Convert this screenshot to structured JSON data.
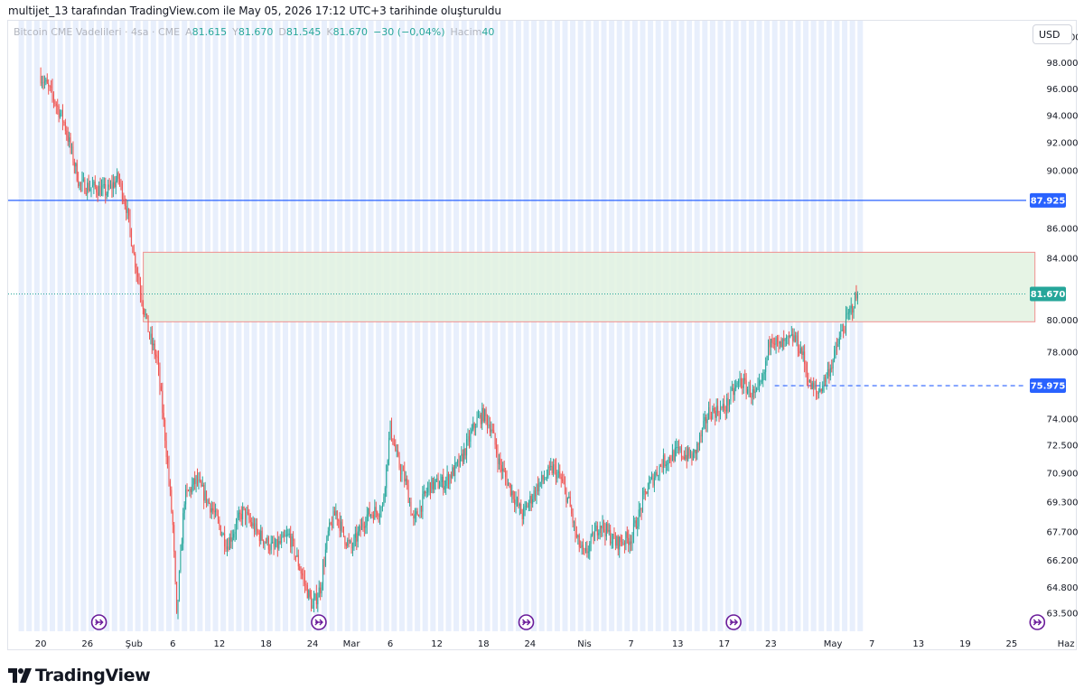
{
  "attribution": "multijet_13 tarafından TradingView.com ile May 05, 2026 17:12 UTC+3 tarihinde oluşturuldu",
  "legend": {
    "symbol": "Bitcoin CME Vadelileri · 4sa · CME",
    "open_label": "A",
    "open": "81.615",
    "high_label": "Y",
    "high": "81.670",
    "low_label": "D",
    "low": "81.545",
    "close_label": "K",
    "close": "81.670",
    "change": "−30 (−0,04%)",
    "volume_label": "Hacim",
    "volume": "40"
  },
  "currency_button": "USD",
  "brand": {
    "name": "TradingView",
    "logo_icon": "tradingview-logo-icon"
  },
  "colors": {
    "up": "#26a69a",
    "down": "#ef5350",
    "session_band": "#e8effc",
    "resistance_line": "#2962ff",
    "zone_fill": "#e2f2e1",
    "zone_border": "#f08f8f",
    "tag_blue": "#2962ff",
    "tag_green": "#26a69a",
    "marker": "#6a1b9a"
  },
  "chart_data": {
    "type": "candlestick",
    "y_scale": "log",
    "ylim": [
      62600,
      101300
    ],
    "y_ticks": [
      "100.000",
      "98.000",
      "96.000",
      "94.000",
      "92.000",
      "90.000",
      "86.000",
      "84.000",
      "80.000",
      "78.000",
      "74.000",
      "72.500",
      "70.900",
      "69.300",
      "67.700",
      "66.200",
      "64.800",
      "63.500"
    ],
    "y_tick_values": [
      100000,
      98000,
      96000,
      94000,
      92000,
      90000,
      86000,
      84000,
      80000,
      78000,
      74000,
      72500,
      70900,
      69300,
      67700,
      66200,
      64800,
      63500
    ],
    "x_ticks": [
      {
        "day": 0,
        "label": "20"
      },
      {
        "day": 6,
        "label": "26"
      },
      {
        "day": 12,
        "label": "Şub"
      },
      {
        "day": 17,
        "label": "6"
      },
      {
        "day": 23,
        "label": "12"
      },
      {
        "day": 29,
        "label": "18"
      },
      {
        "day": 35,
        "label": "24"
      },
      {
        "day": 40,
        "label": "Mar"
      },
      {
        "day": 45,
        "label": "6"
      },
      {
        "day": 51,
        "label": "12"
      },
      {
        "day": 57,
        "label": "18"
      },
      {
        "day": 63,
        "label": "24"
      },
      {
        "day": 70,
        "label": "Nis"
      },
      {
        "day": 76,
        "label": "7"
      },
      {
        "day": 82,
        "label": "13"
      },
      {
        "day": 88,
        "label": "17"
      },
      {
        "day": 94,
        "label": "23"
      },
      {
        "day": 102,
        "label": "May"
      },
      {
        "day": 107,
        "label": "7"
      },
      {
        "day": 113,
        "label": "13"
      },
      {
        "day": 119,
        "label": "19"
      },
      {
        "day": 125,
        "label": "25"
      },
      {
        "day": 132,
        "label": "Haz"
      }
    ],
    "x_range_days": [
      -4.2,
      133.5
    ],
    "last_bar_day": 105.2,
    "candles_per_day": 6,
    "price_path": [
      [
        0,
        97000
      ],
      [
        1.5,
        95500
      ],
      [
        3,
        93500
      ],
      [
        5,
        89000
      ],
      [
        7,
        88800
      ],
      [
        8.5,
        88500
      ],
      [
        10,
        89500
      ],
      [
        11,
        87500
      ],
      [
        12,
        84200
      ],
      [
        13,
        81500
      ],
      [
        14,
        79000
      ],
      [
        15,
        77500
      ],
      [
        16,
        73000
      ],
      [
        17,
        68000
      ],
      [
        17.5,
        63200
      ],
      [
        18.5,
        69500
      ],
      [
        20,
        70500
      ],
      [
        22,
        69000
      ],
      [
        24,
        67000
      ],
      [
        26,
        68800
      ],
      [
        28,
        67600
      ],
      [
        30,
        66800
      ],
      [
        32,
        67500
      ],
      [
        34,
        65000
      ],
      [
        35,
        63800
      ],
      [
        36,
        64800
      ],
      [
        37,
        67600
      ],
      [
        38,
        68800
      ],
      [
        39,
        67500
      ],
      [
        40,
        66800
      ],
      [
        42,
        68600
      ],
      [
        44,
        69000
      ],
      [
        45,
        73500
      ],
      [
        46,
        71500
      ],
      [
        47,
        70400
      ],
      [
        48,
        68200
      ],
      [
        50,
        70200
      ],
      [
        52,
        70400
      ],
      [
        54,
        71500
      ],
      [
        56,
        73800
      ],
      [
        57,
        74300
      ],
      [
        58,
        73500
      ],
      [
        59,
        71500
      ],
      [
        60,
        70500
      ],
      [
        62,
        68600
      ],
      [
        64,
        70200
      ],
      [
        66,
        71200
      ],
      [
        67,
        70500
      ],
      [
        68,
        69300
      ],
      [
        69,
        67300
      ],
      [
        70,
        66400
      ],
      [
        72,
        68200
      ],
      [
        74,
        67100
      ],
      [
        76,
        67400
      ],
      [
        77,
        68600
      ],
      [
        78,
        70000
      ],
      [
        80,
        71500
      ],
      [
        82,
        72100
      ],
      [
        84,
        71800
      ],
      [
        85,
        73000
      ],
      [
        86,
        74400
      ],
      [
        88,
        74600
      ],
      [
        90,
        76300
      ],
      [
        92,
        75300
      ],
      [
        93,
        76300
      ],
      [
        94,
        79200
      ],
      [
        95,
        78300
      ],
      [
        96,
        78600
      ],
      [
        97,
        78900
      ],
      [
        98,
        78000
      ],
      [
        99,
        76000
      ],
      [
        100,
        75500
      ],
      [
        101,
        76400
      ],
      [
        102,
        77500
      ],
      [
        103,
        79100
      ],
      [
        104,
        80300
      ],
      [
        105,
        81500
      ],
      [
        105.2,
        81670
      ]
    ],
    "last_price": 81670,
    "last_price_label": "81.670",
    "horizontal_line": {
      "price": 87925,
      "label": "87.925"
    },
    "support_line": {
      "price": 75975,
      "label": "75.975",
      "from_day": 94.5
    },
    "zone": {
      "top": 84400,
      "bottom": 79900,
      "from_day": 13.2,
      "to_day": 128
    },
    "session_band_start_day": -3,
    "session_band_end_day": 105.5,
    "event_marker_days": [
      7.5,
      35.8,
      62.5,
      89.2,
      128.3
    ],
    "event_marker_icon": "arrow-circle-icon"
  }
}
